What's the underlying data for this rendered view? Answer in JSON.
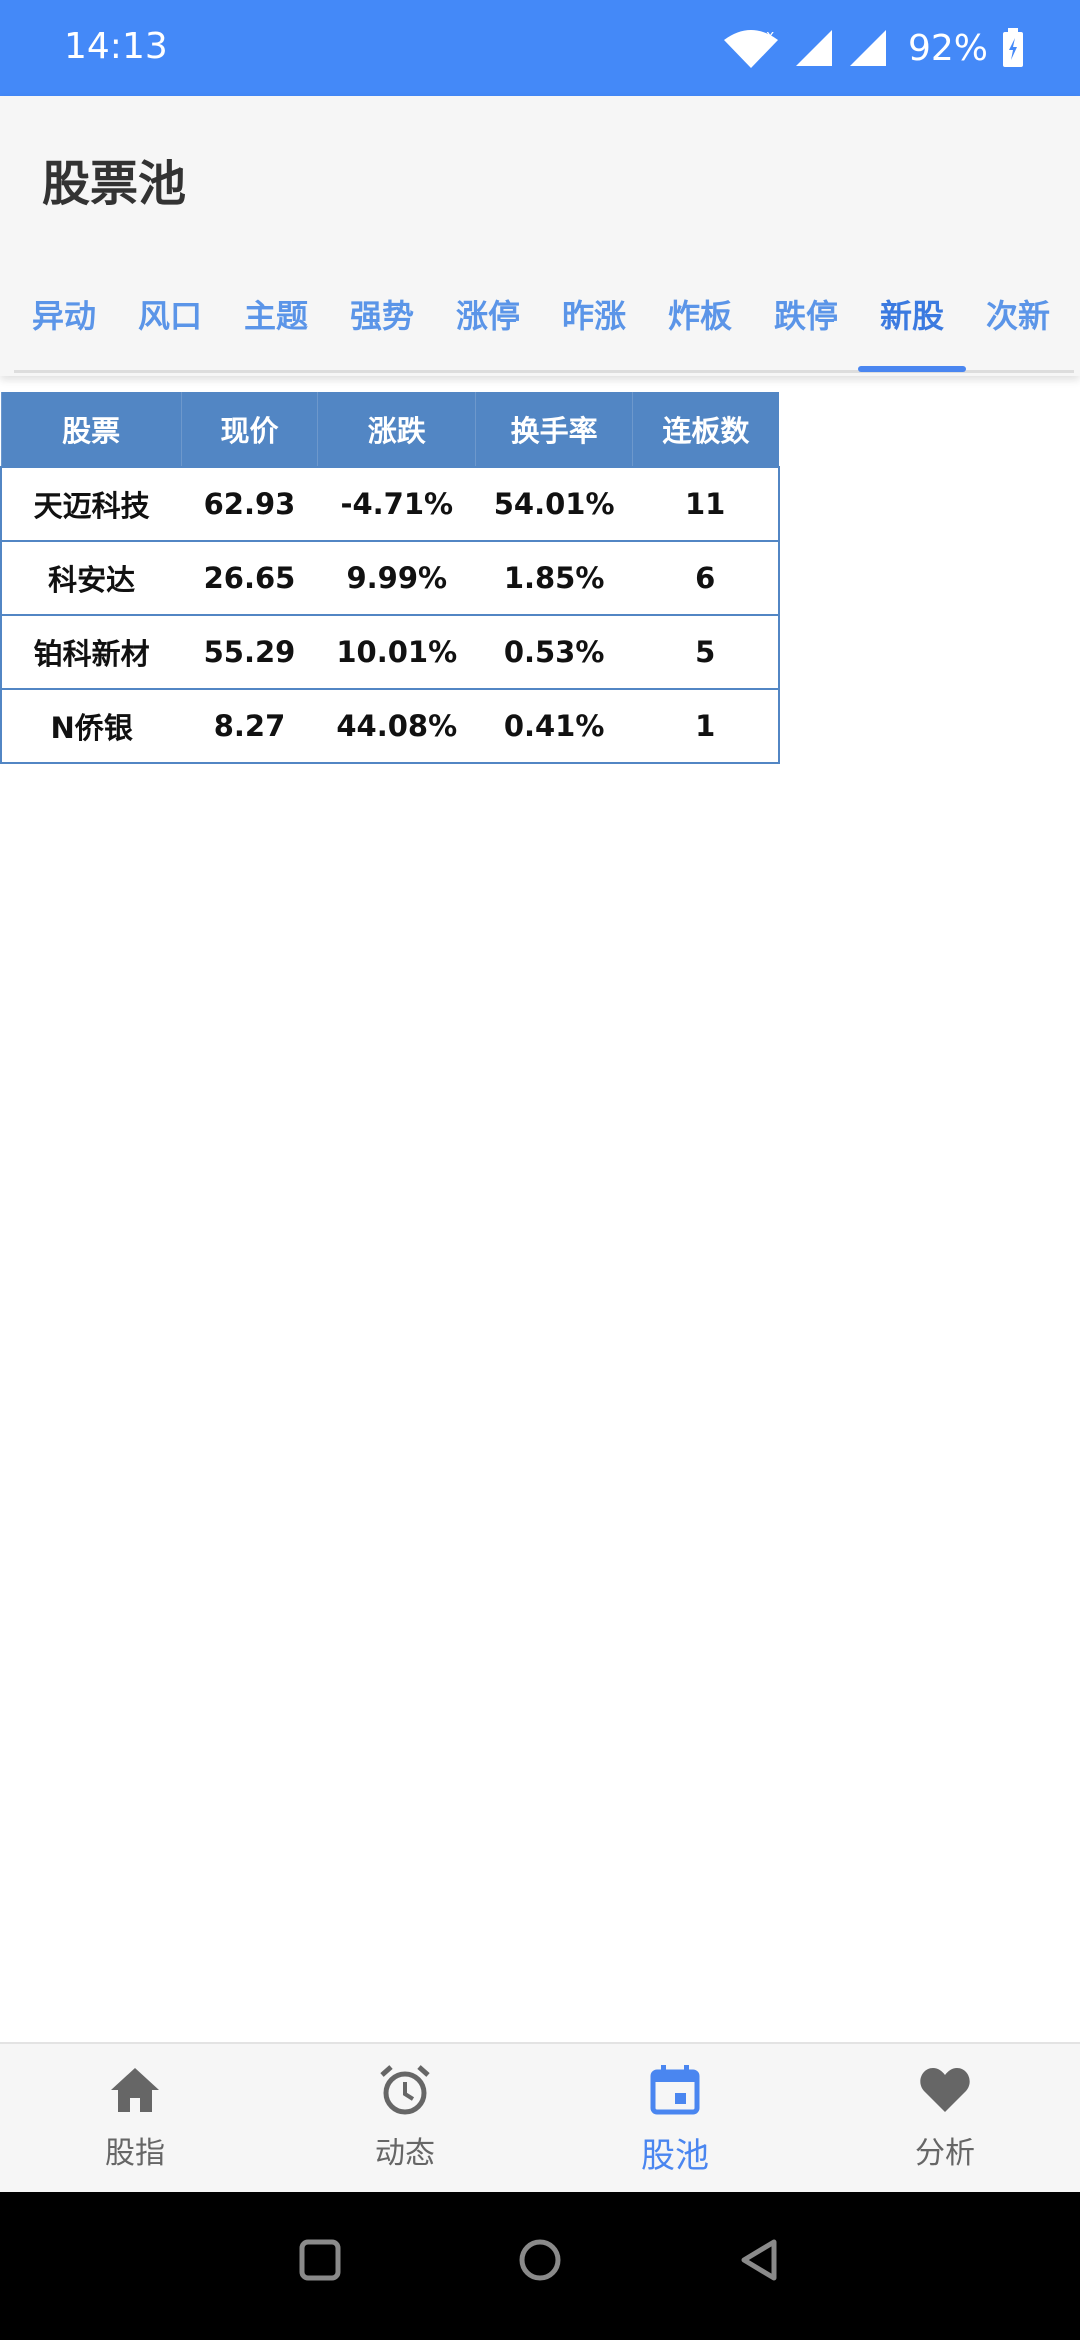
{
  "status_bar": {
    "time": "14:13",
    "battery": "92%"
  },
  "header": {
    "title": "股票池"
  },
  "tabs": [
    {
      "label": "异动"
    },
    {
      "label": "风口"
    },
    {
      "label": "主题"
    },
    {
      "label": "强势"
    },
    {
      "label": "涨停"
    },
    {
      "label": "昨涨"
    },
    {
      "label": "炸板"
    },
    {
      "label": "跌停"
    },
    {
      "label": "新股",
      "active": true
    },
    {
      "label": "次新"
    }
  ],
  "table": {
    "headers": [
      "股票",
      "现价",
      "涨跌",
      "换手率",
      "连板数"
    ],
    "rows": [
      [
        "天迈科技",
        "62.93",
        "-4.71%",
        "54.01%",
        "11"
      ],
      [
        "科安达",
        "26.65",
        "9.99%",
        "1.85%",
        "6"
      ],
      [
        "铂科新材",
        "55.29",
        "10.01%",
        "0.53%",
        "5"
      ],
      [
        "N侨银",
        "8.27",
        "44.08%",
        "0.41%",
        "1"
      ]
    ]
  },
  "bottom_nav": {
    "items": [
      {
        "label": "股指",
        "icon": "home-icon"
      },
      {
        "label": "动态",
        "icon": "alarm-clock-icon"
      },
      {
        "label": "股池",
        "icon": "calendar-icon",
        "active": true
      },
      {
        "label": "分析",
        "icon": "heart-icon"
      }
    ]
  },
  "colors": {
    "status_bar": "#4489f8",
    "accent": "#4a86f0",
    "table_header": "#5286c4",
    "tab_text": "#5b95e8"
  }
}
